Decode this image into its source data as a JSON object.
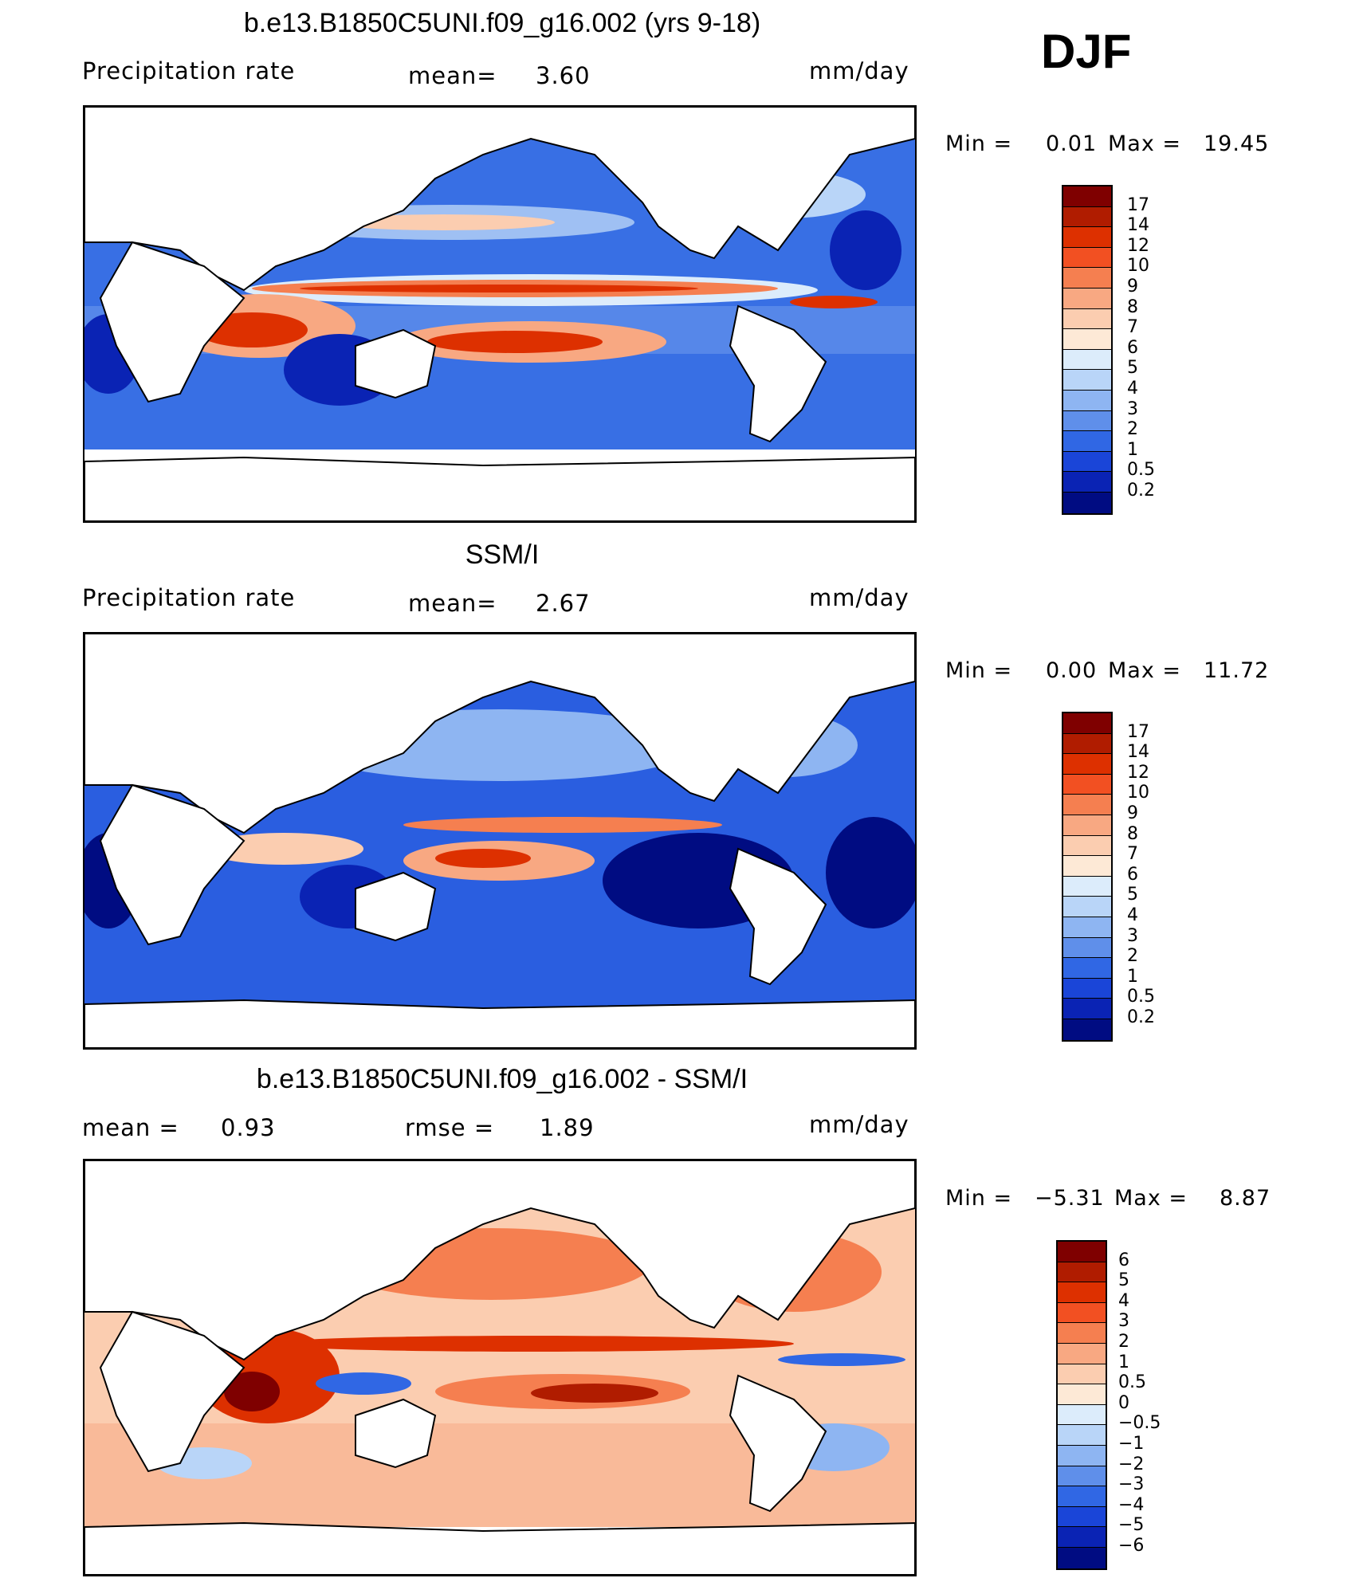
{
  "season": "DJF",
  "panels": [
    {
      "title": "b.e13.B1850C5UNI.f09_g16.002 (yrs 9-18)",
      "left_label": "Precipitation  rate",
      "mid_label": "mean=",
      "mid_value": "3.60",
      "units": "mm/day",
      "min_label": "Min  =",
      "min_value": "0.01",
      "max_label": "Max  =",
      "max_value": "19.45",
      "colorbar": "abs"
    },
    {
      "title": "SSM/I",
      "left_label": "Precipitation  rate",
      "mid_label": "mean=",
      "mid_value": "2.67",
      "units": "mm/day",
      "min_label": "Min  =",
      "min_value": "0.00",
      "max_label": "Max  =",
      "max_value": "11.72",
      "colorbar": "abs"
    },
    {
      "title": "b.e13.B1850C5UNI.f09_g16.002 - SSM/I",
      "left_label": "mean  =",
      "left_value": "0.93",
      "mid_label": "rmse  =",
      "mid_value": "1.89",
      "units": "mm/day",
      "min_label": "Min  =",
      "min_value": "−5.31",
      "max_label": "Max  =",
      "max_value": "8.87",
      "colorbar": "diff"
    }
  ],
  "colorbars": {
    "abs": {
      "labels": [
        "17",
        "14",
        "12",
        "10",
        "9",
        "8",
        "7",
        "6",
        "5",
        "4",
        "3",
        "2",
        "1",
        "0.5",
        "0.2"
      ],
      "colors": [
        "#7f0000",
        "#b01c00",
        "#dd3000",
        "#f25022",
        "#f57f50",
        "#f8a882",
        "#fbcdb0",
        "#fde9d6",
        "#dcecfb",
        "#b9d5f8",
        "#8eb5f2",
        "#5f8fea",
        "#3067e4",
        "#1a45d8",
        "#0a23b4",
        "#000c82"
      ]
    },
    "diff": {
      "labels": [
        "6",
        "5",
        "4",
        "3",
        "2",
        "1",
        "0.5",
        "0",
        "−0.5",
        "−1",
        "−2",
        "−3",
        "−4",
        "−5",
        "−6"
      ],
      "colors": [
        "#7f0000",
        "#b01c00",
        "#dd3000",
        "#f25022",
        "#f57f50",
        "#f8a882",
        "#fbcdb0",
        "#fde9d6",
        "#dcecfb",
        "#b9d5f8",
        "#8eb5f2",
        "#5f8fea",
        "#3067e4",
        "#1a45d8",
        "#0a23b4",
        "#000c82"
      ]
    }
  }
}
